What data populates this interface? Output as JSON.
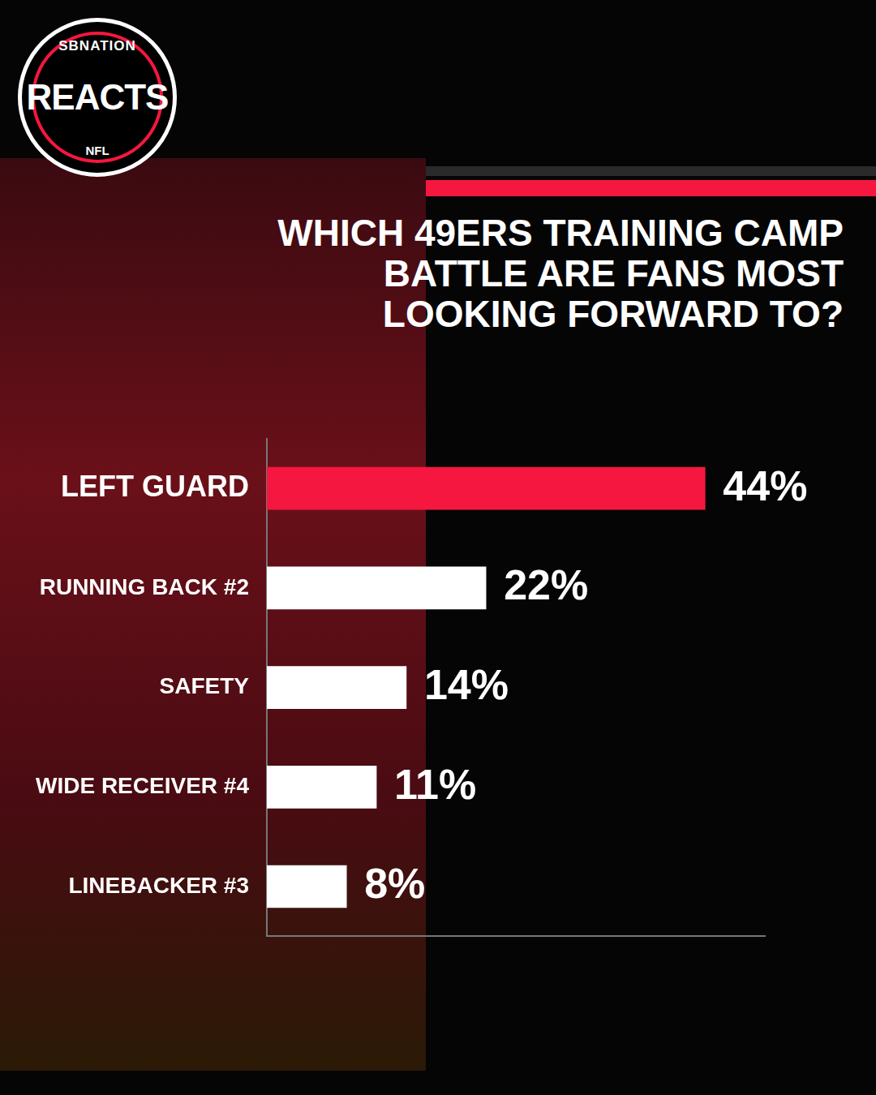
{
  "brand": {
    "top": "SBNATION",
    "main": "REACTS",
    "bottom": "NFL"
  },
  "chart_data": {
    "type": "bar",
    "orientation": "horizontal",
    "title": "WHICH 49ERS TRAINING CAMP BATTLE ARE FANS MOST LOOKING FORWARD TO?",
    "categories": [
      "LEFT GUARD",
      "RUNNING BACK #2",
      "SAFETY",
      "WIDE RECEIVER #4",
      "LINEBACKER #3"
    ],
    "values": [
      44,
      22,
      14,
      11,
      8
    ],
    "value_labels": [
      "44%",
      "22%",
      "14%",
      "11%",
      "8%"
    ],
    "colors": [
      "#f5173f",
      "#ffffff",
      "#ffffff",
      "#ffffff",
      "#ffffff"
    ],
    "xlim": [
      0,
      50
    ],
    "grid": false,
    "data_labels": true,
    "tick_labels": "y"
  }
}
